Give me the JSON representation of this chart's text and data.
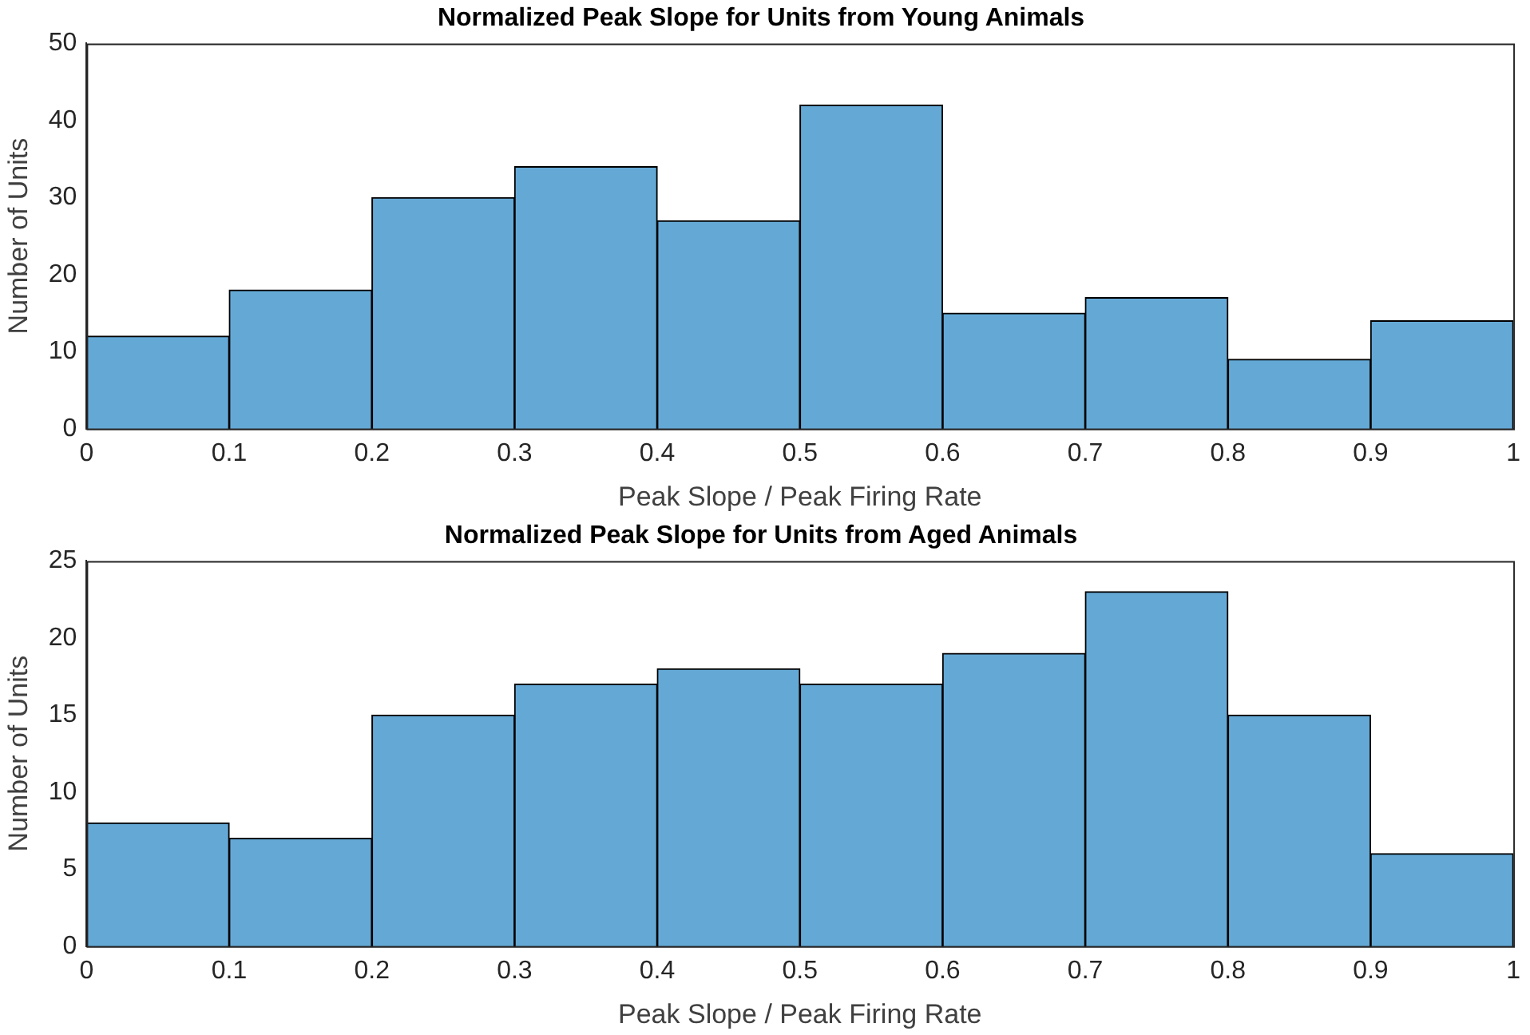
{
  "chart_data": [
    {
      "type": "histogram",
      "title": "Normalized Peak Slope for Units from Young Animals",
      "xlabel": "Peak Slope / Peak Firing Rate",
      "ylabel": "Number of Units",
      "bins": [
        0,
        0.1,
        0.2,
        0.3,
        0.4,
        0.5,
        0.6,
        0.7,
        0.8,
        0.9,
        1
      ],
      "values": [
        12,
        18,
        30,
        34,
        27,
        42,
        15,
        17,
        9,
        14
      ],
      "color": "#64a9d6",
      "xlim": [
        0,
        1
      ],
      "xticks": [
        0,
        0.1,
        0.2,
        0.3,
        0.4,
        0.5,
        0.6,
        0.7,
        0.8,
        0.9,
        1
      ],
      "ylim": [
        0,
        50
      ],
      "yticks": [
        0,
        10,
        20,
        30,
        40,
        50
      ]
    },
    {
      "type": "histogram",
      "title": "Normalized Peak Slope for Units from Aged Animals",
      "xlabel": "Peak Slope / Peak Firing Rate",
      "ylabel": "Number of Units",
      "bins": [
        0,
        0.1,
        0.2,
        0.3,
        0.4,
        0.5,
        0.6,
        0.7,
        0.8,
        0.9,
        1
      ],
      "values": [
        8,
        7,
        15,
        17,
        18,
        17,
        19,
        23,
        15,
        6
      ],
      "color": "#64a9d6",
      "xlim": [
        0,
        1
      ],
      "xticks": [
        0,
        0.1,
        0.2,
        0.3,
        0.4,
        0.5,
        0.6,
        0.7,
        0.8,
        0.9,
        1
      ],
      "ylim": [
        0,
        25
      ],
      "yticks": [
        0,
        5,
        10,
        15,
        20,
        25
      ]
    }
  ]
}
